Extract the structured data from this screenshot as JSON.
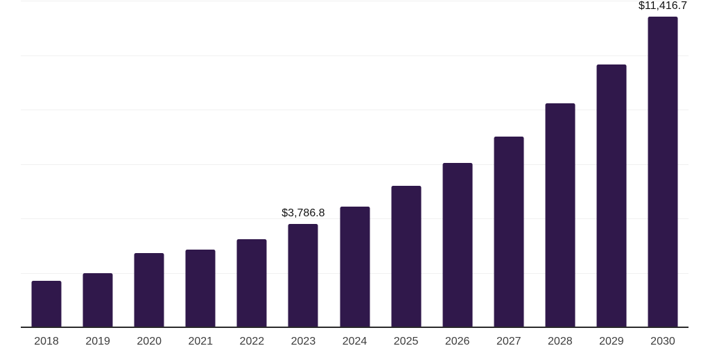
{
  "chart_data": {
    "type": "bar",
    "title": "",
    "xlabel": "",
    "ylabel": "",
    "categories": [
      "2018",
      "2019",
      "2020",
      "2021",
      "2022",
      "2023",
      "2024",
      "2025",
      "2026",
      "2027",
      "2028",
      "2029",
      "2030"
    ],
    "values": [
      1700,
      1980,
      2715,
      2850,
      3240,
      3786.8,
      4430,
      5210,
      6030,
      7015,
      8240,
      9665,
      11416.7
    ],
    "data_labels": {
      "2023": "$3,786.8",
      "2030": "$11,416.7"
    },
    "ylim": [
      0,
      12000
    ],
    "gridline_step": 2000,
    "grid": true,
    "legend": false,
    "y_axis_labels_visible": false,
    "layout": {
      "legend_position": "none",
      "bar_corner": "rounded-top"
    },
    "colors": {
      "bar": "#30184b",
      "axis_line": "#2a2a2a",
      "gridline": "#f0f0f0",
      "tick_label": "#3d3d3d",
      "data_label": "#111111",
      "background": "#ffffff"
    }
  }
}
